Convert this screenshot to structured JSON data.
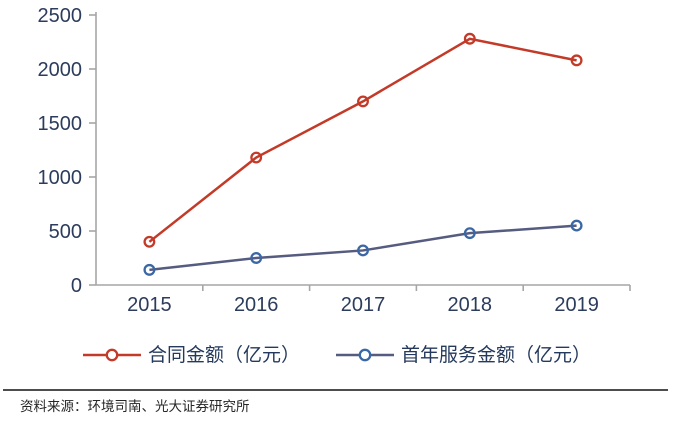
{
  "chart_data": {
    "type": "line",
    "title": "",
    "xlabel": "",
    "ylabel": "",
    "categories": [
      "2015",
      "2016",
      "2017",
      "2018",
      "2019"
    ],
    "series": [
      {
        "name": "合同金额（亿元）",
        "values": [
          400,
          1180,
          1700,
          2280,
          2080
        ],
        "line_color": "#c33a28",
        "marker_color": "#c33a28",
        "marker": "open-circle"
      },
      {
        "name": "首年服务金额（亿元）",
        "values": [
          140,
          250,
          320,
          480,
          550
        ],
        "line_color": "#565b80",
        "marker_color": "#3a67a5",
        "marker": "open-circle"
      }
    ],
    "ylim": [
      0,
      2500
    ],
    "y_ticks": [
      0,
      500,
      1000,
      1500,
      2000,
      2500
    ],
    "grid": false,
    "legend_position": "bottom"
  },
  "footer": {
    "source": "资料来源：环境司南、光大证券研究所"
  },
  "colors": {
    "axis": "#a6a6a6",
    "tick_label": "#2c3c5c",
    "legend_text": "#24395c",
    "source_text": "#262626",
    "divider": "#4d4d4d",
    "background": "#ffffff"
  }
}
